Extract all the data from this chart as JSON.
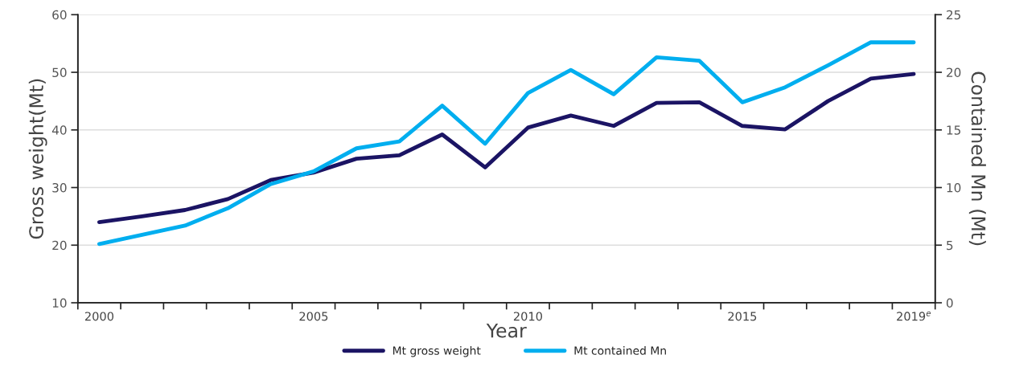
{
  "chart_data": {
    "type": "line",
    "xlabel": "Year",
    "ylabel": "Gross weight(Mt)",
    "y2label": "Contained Mn (Mt)",
    "categories": [
      "2000",
      null,
      null,
      null,
      null,
      "2005",
      null,
      null,
      null,
      null,
      "2010",
      null,
      null,
      null,
      null,
      "2015",
      null,
      null,
      null,
      "2019$^{e}$"
    ],
    "series": [
      {
        "name": "Mt gross weight",
        "color": "#1b1464",
        "values": [
          24.0,
          25.0,
          26.1,
          28.0,
          31.3,
          32.6,
          35.0,
          35.6,
          39.2,
          33.5,
          40.4,
          42.5,
          40.7,
          44.7,
          44.8,
          40.7,
          40.1,
          45.0,
          48.9,
          49.7
        ]
      },
      {
        "name": "Mt contained Mn",
        "color": "#00aeef",
        "axis": "y2",
        "values": [
          5.1,
          5.9,
          6.7,
          8.2,
          10.3,
          11.4,
          13.4,
          14.0,
          17.1,
          13.8,
          18.2,
          20.2,
          18.1,
          21.3,
          21.0,
          17.4,
          18.7,
          20.6,
          22.6,
          22.6
        ]
      }
    ],
    "ylim": [
      10,
      60
    ],
    "yticks": [
      10,
      20,
      30,
      40,
      50,
      60
    ],
    "y2lim": [
      0,
      25
    ],
    "y2ticks": [
      0,
      5,
      10,
      15,
      20,
      25
    ],
    "grid": "y",
    "legend": "bottom",
    "marker": "none",
    "line_style": "solid"
  }
}
